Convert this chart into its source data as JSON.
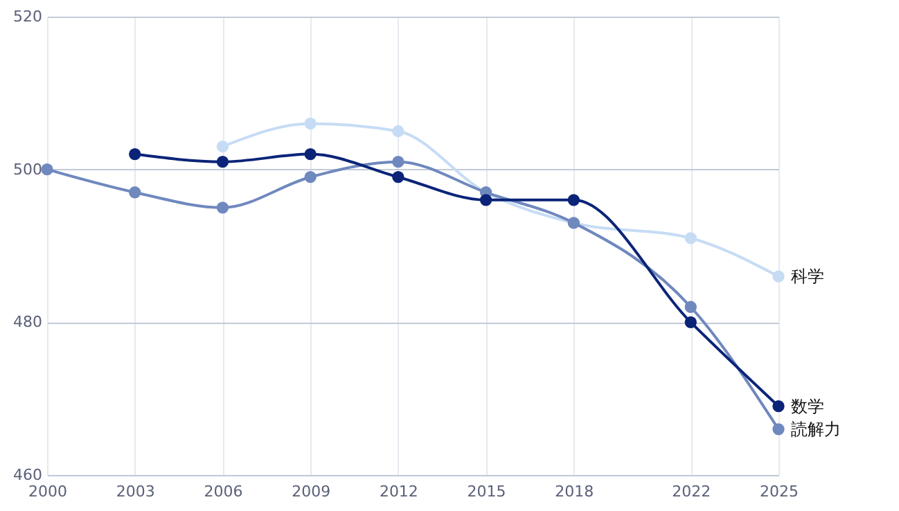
{
  "chart_data": {
    "type": "line",
    "x": [
      2000,
      2003,
      2006,
      2009,
      2012,
      2015,
      2018,
      2022,
      2025
    ],
    "series": [
      {
        "name": "科学",
        "color": "#c6dcf5",
        "values": [
          null,
          null,
          503,
          506,
          505,
          497,
          493,
          491,
          486
        ]
      },
      {
        "name": "読解力",
        "color": "#6f88be",
        "values": [
          500,
          497,
          495,
          499,
          501,
          497,
          493,
          482,
          466
        ]
      },
      {
        "name": "数学",
        "color": "#0b2478",
        "values": [
          null,
          502,
          501,
          502,
          499,
          496,
          496,
          480,
          469
        ]
      }
    ],
    "xlim": [
      2000,
      2025
    ],
    "xticks": [
      2000,
      2003,
      2006,
      2009,
      2012,
      2015,
      2018,
      2022,
      2025
    ],
    "ylim": [
      460,
      520
    ],
    "yticks": [
      460,
      480,
      500,
      520
    ],
    "grid": true,
    "marker": "circle",
    "line_style": "solid"
  }
}
